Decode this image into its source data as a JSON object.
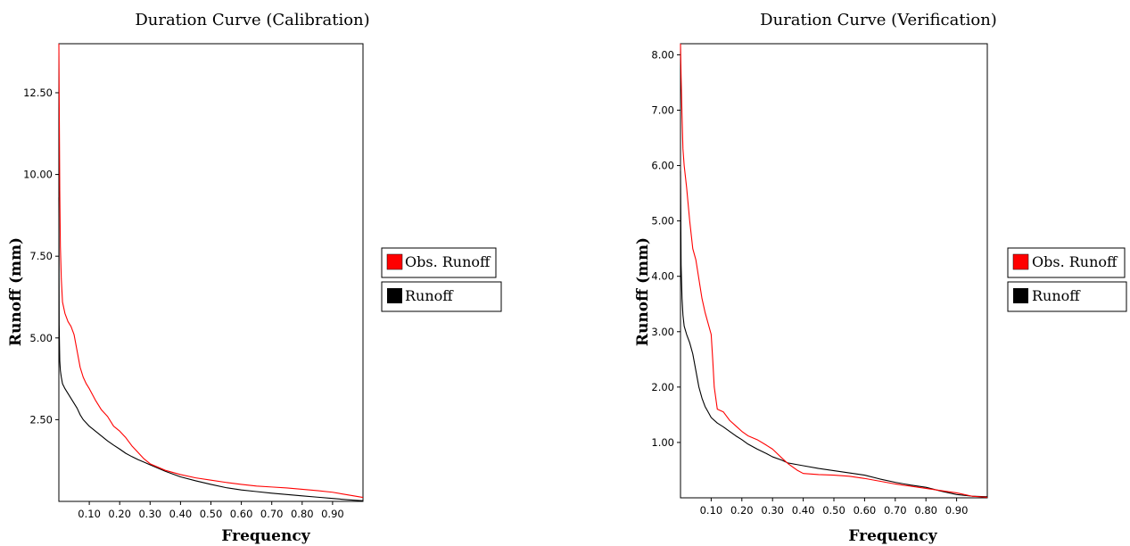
{
  "chart_data": [
    {
      "type": "line",
      "title": "Duration Curve (Calibration)",
      "xlabel": "Frequency",
      "ylabel": "Runoff (mm)",
      "xlim": [
        0.0,
        1.0
      ],
      "ylim": [
        0.0,
        14.0
      ],
      "xticks": [
        0.1,
        0.2,
        0.3,
        0.4,
        0.5,
        0.6,
        0.7,
        0.8,
        0.9
      ],
      "xtick_labels": [
        "0.10",
        "0.20",
        "0.30",
        "0.40",
        "0.50",
        "0.60",
        "0.70",
        "0.80",
        "0.90"
      ],
      "yticks": [
        2.5,
        5.0,
        7.5,
        10.0,
        12.5
      ],
      "ytick_labels": [
        "2.50",
        "5.00",
        "7.50",
        "10.00",
        "12.50"
      ],
      "legend": "right",
      "grid": false,
      "series": [
        {
          "name": "Obs. Runoff",
          "color": "#ff0000",
          "x": [
            0.0,
            0.001,
            0.002,
            0.003,
            0.005,
            0.008,
            0.012,
            0.02,
            0.03,
            0.04,
            0.05,
            0.06,
            0.07,
            0.08,
            0.09,
            0.1,
            0.12,
            0.14,
            0.16,
            0.18,
            0.2,
            0.22,
            0.24,
            0.26,
            0.28,
            0.3,
            0.35,
            0.4,
            0.45,
            0.5,
            0.55,
            0.6,
            0.65,
            0.7,
            0.75,
            0.8,
            0.85,
            0.9,
            0.95,
            1.0
          ],
          "y": [
            14.0,
            12.5,
            11.0,
            9.5,
            7.8,
            6.8,
            6.1,
            5.75,
            5.5,
            5.35,
            5.1,
            4.6,
            4.1,
            3.8,
            3.6,
            3.45,
            3.1,
            2.8,
            2.6,
            2.3,
            2.15,
            1.95,
            1.7,
            1.5,
            1.3,
            1.15,
            0.95,
            0.82,
            0.72,
            0.65,
            0.58,
            0.52,
            0.47,
            0.44,
            0.41,
            0.37,
            0.33,
            0.28,
            0.2,
            0.12
          ]
        },
        {
          "name": "Runoff",
          "color": "#000000",
          "x": [
            0.0,
            0.001,
            0.002,
            0.003,
            0.005,
            0.008,
            0.012,
            0.02,
            0.03,
            0.04,
            0.05,
            0.06,
            0.07,
            0.08,
            0.09,
            0.1,
            0.12,
            0.14,
            0.16,
            0.18,
            0.2,
            0.22,
            0.24,
            0.26,
            0.28,
            0.3,
            0.35,
            0.4,
            0.45,
            0.5,
            0.55,
            0.6,
            0.65,
            0.7,
            0.75,
            0.8,
            0.85,
            0.9,
            0.95,
            1.0
          ],
          "y": [
            9.3,
            5.4,
            4.8,
            4.3,
            4.0,
            3.8,
            3.6,
            3.45,
            3.3,
            3.15,
            3.0,
            2.85,
            2.65,
            2.5,
            2.4,
            2.3,
            2.15,
            2.0,
            1.85,
            1.72,
            1.6,
            1.47,
            1.37,
            1.28,
            1.2,
            1.12,
            0.92,
            0.75,
            0.63,
            0.52,
            0.42,
            0.35,
            0.3,
            0.25,
            0.21,
            0.17,
            0.13,
            0.09,
            0.05,
            0.02
          ]
        }
      ]
    },
    {
      "type": "line",
      "title": "Duration Curve (Verification)",
      "xlabel": "Frequency",
      "ylabel": "Runoff (mm)",
      "xlim": [
        0.0,
        1.0
      ],
      "ylim": [
        0.0,
        8.2
      ],
      "xticks": [
        0.1,
        0.2,
        0.3,
        0.4,
        0.5,
        0.6,
        0.7,
        0.8,
        0.9
      ],
      "xtick_labels": [
        "0.10",
        "0.20",
        "0.30",
        "0.40",
        "0.50",
        "0.60",
        "0.70",
        "0.80",
        "0.90"
      ],
      "yticks": [
        1.0,
        2.0,
        3.0,
        4.0,
        5.0,
        6.0,
        7.0,
        8.0
      ],
      "ytick_labels": [
        "1.00",
        "2.00",
        "3.00",
        "4.00",
        "5.00",
        "6.00",
        "7.00",
        "8.00"
      ],
      "legend": "right",
      "grid": false,
      "series": [
        {
          "name": "Obs. Runoff",
          "color": "#ff0000",
          "x": [
            0.0,
            0.002,
            0.005,
            0.008,
            0.012,
            0.02,
            0.03,
            0.04,
            0.05,
            0.06,
            0.07,
            0.08,
            0.09,
            0.1,
            0.105,
            0.11,
            0.12,
            0.14,
            0.16,
            0.18,
            0.2,
            0.22,
            0.25,
            0.28,
            0.3,
            0.33,
            0.35,
            0.38,
            0.4,
            0.45,
            0.5,
            0.55,
            0.6,
            0.65,
            0.7,
            0.75,
            0.8,
            0.85,
            0.9,
            0.95,
            1.0
          ],
          "y": [
            8.2,
            7.6,
            6.9,
            6.3,
            6.0,
            5.6,
            5.0,
            4.5,
            4.3,
            3.95,
            3.6,
            3.35,
            3.15,
            2.95,
            2.5,
            2.0,
            1.6,
            1.55,
            1.4,
            1.3,
            1.2,
            1.12,
            1.05,
            0.95,
            0.88,
            0.72,
            0.62,
            0.5,
            0.44,
            0.42,
            0.41,
            0.39,
            0.35,
            0.3,
            0.25,
            0.21,
            0.17,
            0.13,
            0.09,
            0.03,
            0.01
          ]
        },
        {
          "name": "Runoff",
          "color": "#000000",
          "x": [
            0.0,
            0.002,
            0.005,
            0.008,
            0.012,
            0.02,
            0.03,
            0.04,
            0.05,
            0.06,
            0.07,
            0.08,
            0.09,
            0.1,
            0.12,
            0.14,
            0.16,
            0.18,
            0.2,
            0.22,
            0.25,
            0.28,
            0.3,
            0.33,
            0.35,
            0.38,
            0.4,
            0.45,
            0.5,
            0.55,
            0.6,
            0.65,
            0.7,
            0.75,
            0.8,
            0.85,
            0.9,
            0.95,
            1.0
          ],
          "y": [
            5.9,
            4.2,
            3.6,
            3.3,
            3.1,
            2.95,
            2.8,
            2.6,
            2.3,
            2.0,
            1.8,
            1.65,
            1.55,
            1.45,
            1.35,
            1.28,
            1.2,
            1.12,
            1.05,
            0.97,
            0.88,
            0.8,
            0.74,
            0.68,
            0.63,
            0.6,
            0.58,
            0.53,
            0.49,
            0.45,
            0.41,
            0.34,
            0.28,
            0.23,
            0.19,
            0.12,
            0.06,
            0.03,
            0.02
          ]
        }
      ]
    }
  ]
}
